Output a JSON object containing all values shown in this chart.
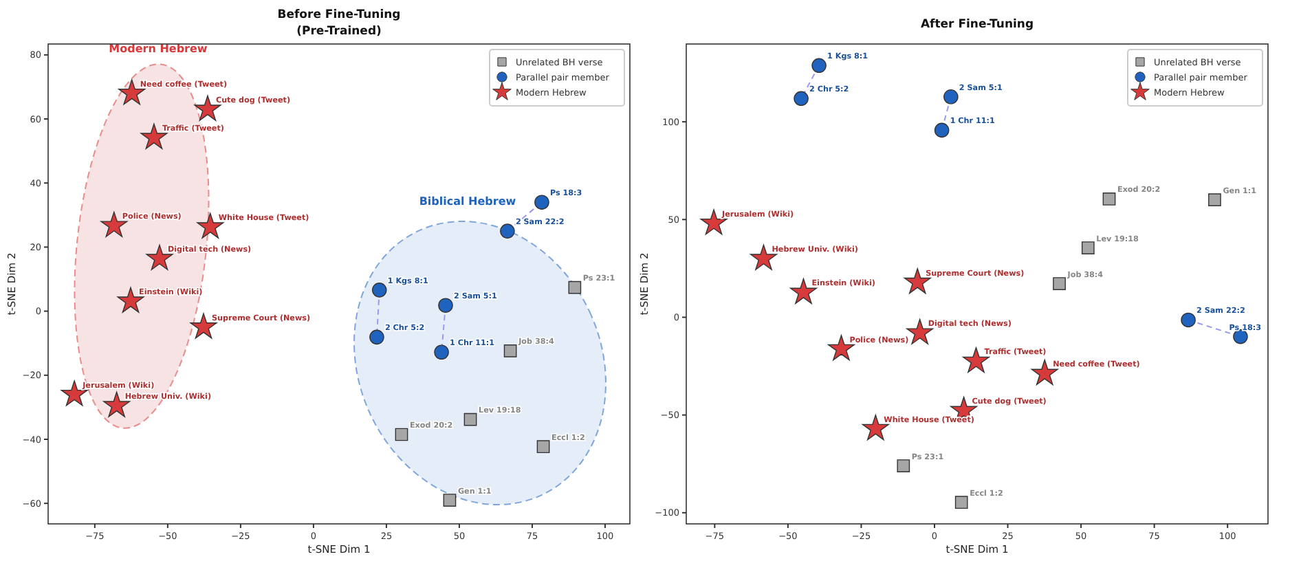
{
  "chart_data": [
    {
      "type": "scatter",
      "title": "Before Fine-Tuning",
      "subtitle": "(Pre-Trained)",
      "xlabel": "t-SNE Dim 1",
      "ylabel": "t-SNE Dim 2",
      "xlim": [
        -91,
        108.5
      ],
      "ylim": [
        -66.4,
        83.4
      ],
      "xticks": [
        -75,
        -50,
        -25,
        0,
        25,
        50,
        75,
        100
      ],
      "yticks": [
        -60,
        -40,
        -20,
        0,
        20,
        40,
        60,
        80
      ],
      "grid": false,
      "legend": "top right",
      "annotations": [
        "Modern Hebrew",
        "Biblical Hebrew"
      ],
      "series": [
        {
          "type": "line",
          "color": "#9999ee",
          "line_style": "dashed",
          "marker": "none",
          "x": [
            22.6,
            21.7
          ],
          "values": [
            6.6,
            -8.1
          ]
        },
        {
          "type": "line",
          "color": "#9999ee",
          "line_style": "dashed",
          "marker": "none",
          "x": [
            45.3,
            43.9
          ],
          "values": [
            1.8,
            -12.8
          ]
        },
        {
          "type": "line",
          "color": "#9999ee",
          "line_style": "dashed",
          "marker": "none",
          "x": [
            66.5,
            78.3
          ],
          "values": [
            25,
            34
          ]
        },
        {
          "name": "Unrelated BH verse",
          "color": "#a6a6a6",
          "marker": "square",
          "x": [
            89.6,
            67.5,
            53.8,
            30.2,
            78.8,
            46.7
          ],
          "values": [
            7.4,
            -12.4,
            -33.8,
            -38.5,
            -42.3,
            -59
          ],
          "value_labels": [
            "Ps 23:1",
            "Job 38:4",
            "Lev 19:18",
            "Exod 20:2",
            "Eccl 1:2",
            "Gen 1:1"
          ]
        },
        {
          "name": "Parallel pair member",
          "color": "#1f63bf",
          "marker": "circle",
          "x": [
            78.3,
            66.5,
            22.6,
            21.7,
            45.3,
            43.9
          ],
          "values": [
            34,
            25,
            6.6,
            -8.1,
            1.8,
            -12.8
          ],
          "value_labels": [
            "Ps 18:3",
            "2 Sam 22:2",
            "1 Kgs 8:1",
            "2 Chr 5:2",
            "2 Sam 5:1",
            "1 Chr 11:1"
          ]
        },
        {
          "name": "Modern Hebrew",
          "color": "#d63a3a",
          "marker": "star",
          "x": [
            -62.3,
            -36.3,
            -54.7,
            -68.4,
            -35.4,
            -52.8,
            -62.7,
            -37.7,
            -82,
            -67.5
          ],
          "values": [
            68,
            63,
            54.2,
            26.7,
            26.3,
            16.4,
            3.1,
            -5,
            -26,
            -29.5
          ],
          "value_labels": [
            "Need coffee (Tweet)",
            "Cute dog (Tweet)",
            "Traffic (Tweet)",
            "Police (News)",
            "White House (Tweet)",
            "Digital tech (News)",
            "Einstein (Wiki)",
            "Supreme Court (News)",
            "Jerusalem (Wiki)",
            "Hebrew Univ. (Wiki)"
          ]
        }
      ]
    },
    {
      "type": "scatter",
      "title": "After Fine-Tuning",
      "xlabel": "t-SNE Dim 1",
      "ylabel": "t-SNE Dim 2",
      "xlim": [
        -84.7,
        113.8
      ],
      "ylim": [
        -105.7,
        139.8
      ],
      "xticks": [
        -75,
        -50,
        -25,
        0,
        25,
        50,
        75,
        100
      ],
      "yticks": [
        -100,
        -50,
        0,
        50,
        100
      ],
      "grid": false,
      "legend": "top right",
      "series": [
        {
          "type": "line",
          "color": "#9999ee",
          "line_style": "dashed",
          "marker": "none",
          "x": [
            -39.4,
            -45.5
          ],
          "values": [
            128.8,
            111.9
          ]
        },
        {
          "type": "line",
          "color": "#9999ee",
          "line_style": "dashed",
          "marker": "none",
          "x": [
            5.6,
            2.5
          ],
          "values": [
            112.8,
            95.7
          ]
        },
        {
          "type": "line",
          "color": "#9999ee",
          "line_style": "dashed",
          "marker": "none",
          "x": [
            86.6,
            104.4
          ],
          "values": [
            -1.4,
            -9.9
          ]
        },
        {
          "name": "Unrelated BH verse",
          "color": "#a6a6a6",
          "marker": "square",
          "x": [
            59.6,
            95.6,
            52.4,
            42.6,
            -10.6,
            9.2
          ],
          "values": [
            60.5,
            60.1,
            35.5,
            17.2,
            -76,
            -94.7
          ],
          "value_labels": [
            "Exod 20:2",
            "Gen 1:1",
            "Lev 19:18",
            "Job 38:4",
            "Ps 23:1",
            "Eccl 1:2"
          ]
        },
        {
          "name": "Parallel pair member",
          "color": "#1f63bf",
          "marker": "circle",
          "x": [
            -39.4,
            -45.5,
            5.6,
            2.5,
            86.6,
            104.4
          ],
          "values": [
            128.8,
            111.9,
            112.8,
            95.7,
            -1.4,
            -9.9
          ],
          "value_labels": [
            "1 Kgs 8:1",
            "2 Chr 5:2",
            "2 Sam 5:1",
            "1 Chr 11:1",
            "2 Sam 22:2",
            "Ps 18:3"
          ]
        },
        {
          "name": "Modern Hebrew",
          "color": "#d63a3a",
          "marker": "star",
          "x": [
            -75.3,
            -58.3,
            -44.7,
            -31.8,
            -5.8,
            -5,
            -20.1,
            10,
            14.2,
            37.6
          ],
          "values": [
            48.1,
            30,
            12.7,
            -16.2,
            17.9,
            -8,
            -57,
            -47.8,
            -22.5,
            -28.8
          ],
          "value_labels": [
            "Jerusalem (Wiki)",
            "Hebrew Univ. (Wiki)",
            "Einstein (Wiki)",
            "Police (News)",
            "Supreme Court (News)",
            "Digital tech (News)",
            "White House (Tweet)",
            "Cute dog (Tweet)",
            "Traffic (Tweet)",
            "Need coffee (Tweet)"
          ]
        }
      ]
    }
  ]
}
